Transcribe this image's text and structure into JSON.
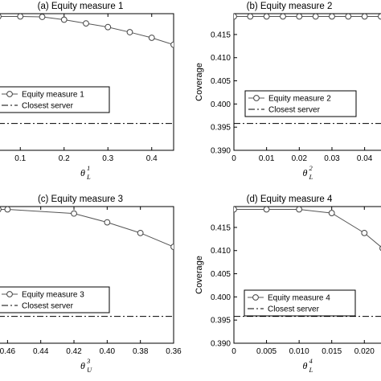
{
  "chart_data": [
    {
      "id": "panel-a",
      "type": "line",
      "title": "(a) Equity measure 1",
      "ylabel": "",
      "xlabel": {
        "symbol": "θ",
        "sub": "L",
        "sup": "1"
      },
      "x_ticks": [
        0.1,
        0.2,
        0.3,
        0.4
      ],
      "x_tick_labels": [
        "0.1",
        "0.2",
        "0.3",
        "0.4"
      ],
      "y_ticks": [],
      "y_tick_labels": [],
      "xlim": [
        0.05,
        0.45
      ],
      "ylim": [
        0.39,
        0.4195
      ],
      "series": [
        {
          "name": "Equity measure 1",
          "style": "solid-circle",
          "x": [
            0.05,
            0.1,
            0.15,
            0.2,
            0.25,
            0.3,
            0.35,
            0.4,
            0.45
          ],
          "y": [
            0.4189,
            0.4189,
            0.4188,
            0.4182,
            0.4174,
            0.4166,
            0.4155,
            0.4143,
            0.4128
          ]
        },
        {
          "name": "Closest server",
          "style": "dashdot",
          "x": [
            0.05,
            0.45
          ],
          "y": [
            0.3958,
            0.3958
          ]
        }
      ],
      "legend": {
        "position": "middle-left",
        "entries": [
          "Equity measure 1",
          "Closest server"
        ]
      }
    },
    {
      "id": "panel-b",
      "type": "line",
      "title": "(b) Equity measure 2",
      "ylabel": "Coverage",
      "xlabel": {
        "symbol": "θ",
        "sub": "L",
        "sup": "2"
      },
      "x_ticks": [
        0,
        0.01,
        0.02,
        0.03,
        0.04
      ],
      "x_tick_labels": [
        "0",
        "0.01",
        "0.02",
        "0.03",
        "0.04"
      ],
      "y_ticks": [
        0.39,
        0.395,
        0.4,
        0.405,
        0.41,
        0.415
      ],
      "y_tick_labels": [
        "0.390",
        "0.395",
        "0.400",
        "0.405",
        "0.410",
        "0.415"
      ],
      "xlim": [
        0,
        0.0455
      ],
      "ylim": [
        0.39,
        0.4195
      ],
      "series": [
        {
          "name": "Equity measure 2",
          "style": "solid-circle",
          "x": [
            0,
            0.005,
            0.01,
            0.015,
            0.02,
            0.025,
            0.03,
            0.035,
            0.04,
            0.045
          ],
          "y": [
            0.4189,
            0.4189,
            0.4189,
            0.4189,
            0.4189,
            0.4189,
            0.4189,
            0.4189,
            0.4189,
            0.4189
          ]
        },
        {
          "name": "Closest server",
          "style": "dashdot",
          "x": [
            0,
            0.0455
          ],
          "y": [
            0.3958,
            0.3958
          ]
        }
      ],
      "legend": {
        "position": "middle-right",
        "entries": [
          "Equity measure 2",
          "Closest server"
        ]
      }
    },
    {
      "id": "panel-c",
      "type": "line",
      "title": "(c) Equity measure 3",
      "ylabel": "",
      "xlabel": {
        "symbol": "θ",
        "sub": "U",
        "sup": "3"
      },
      "x_ticks": [
        0.46,
        0.44,
        0.42,
        0.4,
        0.38,
        0.36
      ],
      "x_tick_labels": [
        "0.46",
        "0.44",
        "0.42",
        "0.40",
        "0.38",
        "0.36"
      ],
      "y_ticks": [],
      "y_tick_labels": [],
      "xlim": [
        0.4655,
        0.36
      ],
      "x_reversed": true,
      "ylim": [
        0.39,
        0.4195
      ],
      "series": [
        {
          "name": "Equity measure 3",
          "style": "solid-circle",
          "x": [
            0.4655,
            0.46,
            0.42,
            0.4,
            0.38,
            0.36
          ],
          "y": [
            0.4189,
            0.4189,
            0.418,
            0.4161,
            0.4138,
            0.4108
          ]
        },
        {
          "name": "Closest server",
          "style": "dashdot",
          "x": [
            0.4655,
            0.36
          ],
          "y": [
            0.3958,
            0.3958
          ]
        }
      ],
      "legend": {
        "position": "middle-left",
        "entries": [
          "Equity measure 3",
          "Closest server"
        ]
      }
    },
    {
      "id": "panel-d",
      "type": "line",
      "title": "(d) Equity measure 4",
      "ylabel": "Coverage",
      "xlabel": {
        "symbol": "θ",
        "sub": "L",
        "sup": "4"
      },
      "x_ticks": [
        0,
        0.005,
        0.01,
        0.015,
        0.02
      ],
      "x_tick_labels": [
        "0",
        "0.005",
        "0.010",
        "0.015",
        "0.020"
      ],
      "y_ticks": [
        0.39,
        0.395,
        0.4,
        0.405,
        0.41,
        0.415
      ],
      "y_tick_labels": [
        "0.390",
        "0.395",
        "0.400",
        "0.405",
        "0.410",
        "0.415"
      ],
      "xlim": [
        0,
        0.0228
      ],
      "ylim": [
        0.39,
        0.4195
      ],
      "series": [
        {
          "name": "Equity measure 4",
          "style": "solid-circle",
          "x": [
            0,
            0.005,
            0.01,
            0.015,
            0.02,
            0.0228
          ],
          "y": [
            0.4189,
            0.4189,
            0.4189,
            0.4181,
            0.4138,
            0.4105
          ]
        },
        {
          "name": "Closest server",
          "style": "dashdot",
          "x": [
            0,
            0.0228
          ],
          "y": [
            0.3958,
            0.3958
          ]
        }
      ],
      "legend": {
        "position": "middle-right",
        "entries": [
          "Equity measure 4",
          "Closest server"
        ]
      }
    }
  ]
}
